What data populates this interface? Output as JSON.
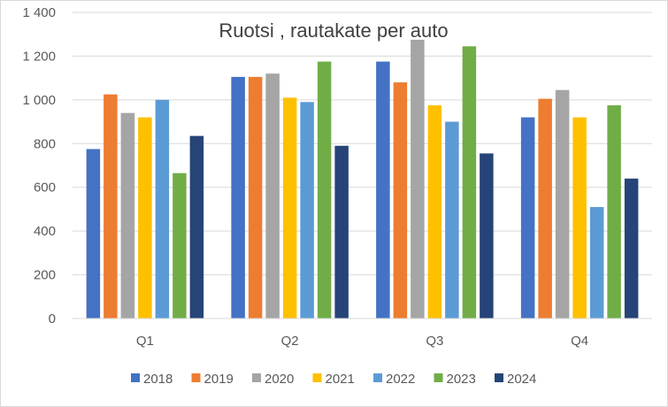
{
  "chart_data": {
    "type": "bar",
    "title": "Ruotsi , rautakate per auto",
    "xlabel": "",
    "ylabel": "",
    "categories": [
      "Q1",
      "Q2",
      "Q3",
      "Q4"
    ],
    "ylim": [
      0,
      1400
    ],
    "yticks": [
      0,
      200,
      400,
      600,
      800,
      1000,
      1200,
      1400
    ],
    "ytick_labels": [
      "0",
      "200",
      "400",
      "600",
      "800",
      "1 000",
      "1 200",
      "1 400"
    ],
    "grid": true,
    "legend_position": "bottom",
    "series": [
      {
        "name": "2018",
        "color": "#4472C4",
        "values": [
          775,
          1105,
          1175,
          920
        ]
      },
      {
        "name": "2019",
        "color": "#ED7D31",
        "values": [
          1025,
          1105,
          1080,
          1005
        ]
      },
      {
        "name": "2020",
        "color": "#A5A5A5",
        "values": [
          940,
          1120,
          1275,
          1045
        ]
      },
      {
        "name": "2021",
        "color": "#FFC000",
        "values": [
          920,
          1010,
          975,
          920
        ]
      },
      {
        "name": "2022",
        "color": "#5B9BD5",
        "values": [
          1000,
          990,
          900,
          510
        ]
      },
      {
        "name": "2023",
        "color": "#70AD47",
        "values": [
          665,
          1175,
          1245,
          975
        ]
      },
      {
        "name": "2024",
        "color": "#264478",
        "values": [
          835,
          790,
          755,
          640
        ]
      }
    ]
  }
}
